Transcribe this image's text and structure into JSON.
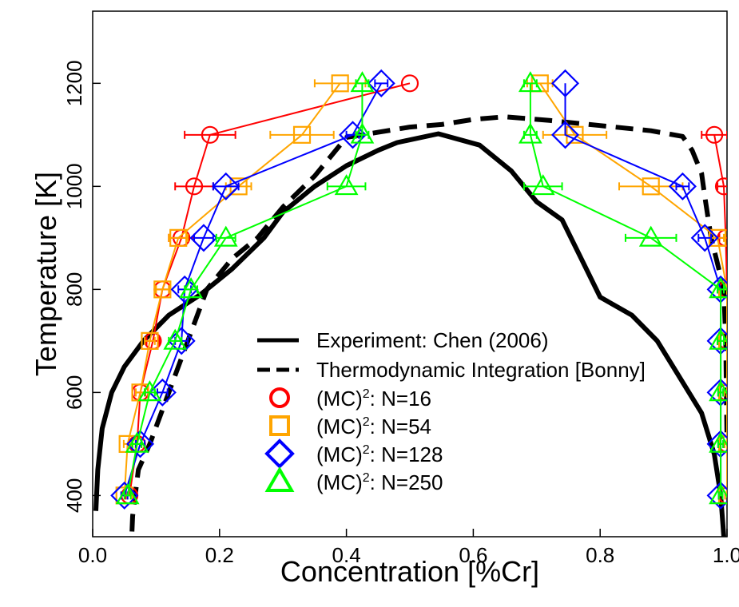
{
  "chart_data": {
    "type": "scatter",
    "xlabel": "Concentration [%Cr]",
    "ylabel": "Temperature [K]",
    "xlim": [
      0.0,
      1.0
    ],
    "ylim": [
      320,
      1340
    ],
    "x_ticks": [
      "0.0",
      "0.2",
      "0.4",
      "0.6",
      "0.8",
      "1.0"
    ],
    "y_ticks": [
      "400",
      "600",
      "800",
      "1000",
      "1200"
    ],
    "grid": false,
    "legend_position": "center",
    "lines": [
      {
        "name": "Experiment: Chen (2006)",
        "color": "#000000",
        "dash": "solid",
        "points": [
          [
            0.005,
            370
          ],
          [
            0.008,
            450
          ],
          [
            0.015,
            530
          ],
          [
            0.03,
            600
          ],
          [
            0.05,
            650
          ],
          [
            0.08,
            700
          ],
          [
            0.12,
            750
          ],
          [
            0.17,
            790
          ],
          [
            0.22,
            840
          ],
          [
            0.27,
            900
          ],
          [
            0.3,
            950
          ],
          [
            0.35,
            1000
          ],
          [
            0.4,
            1040
          ],
          [
            0.45,
            1070
          ],
          [
            0.48,
            1085
          ],
          [
            0.545,
            1102
          ],
          [
            0.61,
            1080
          ],
          [
            0.66,
            1030
          ],
          [
            0.7,
            970
          ],
          [
            0.74,
            935
          ],
          [
            0.77,
            860
          ],
          [
            0.8,
            785
          ],
          [
            0.85,
            750
          ],
          [
            0.89,
            700
          ],
          [
            0.92,
            640
          ],
          [
            0.96,
            560
          ],
          [
            0.98,
            480
          ],
          [
            0.99,
            400
          ],
          [
            0.995,
            320
          ]
        ]
      },
      {
        "name": "Thermodynamic Integration [Bonny]",
        "color": "#000000",
        "dash": "dashed",
        "points": [
          [
            0.062,
            330
          ],
          [
            0.063,
            360
          ],
          [
            0.072,
            450
          ],
          [
            0.09,
            500
          ],
          [
            0.12,
            600
          ],
          [
            0.15,
            700
          ],
          [
            0.18,
            800
          ],
          [
            0.22,
            860
          ],
          [
            0.26,
            900
          ],
          [
            0.3,
            960
          ],
          [
            0.35,
            1020
          ],
          [
            0.4,
            1095
          ],
          [
            0.45,
            1105
          ],
          [
            0.5,
            1115
          ],
          [
            0.55,
            1120
          ],
          [
            0.6,
            1130
          ],
          [
            0.65,
            1135
          ],
          [
            0.72,
            1128
          ],
          [
            0.8,
            1118
          ],
          [
            0.88,
            1108
          ],
          [
            0.93,
            1097
          ],
          [
            0.945,
            1070
          ],
          [
            0.96,
            1025
          ],
          [
            0.965,
            980
          ],
          [
            0.975,
            900
          ],
          [
            0.985,
            850
          ],
          [
            0.995,
            800
          ],
          [
            0.998,
            700
          ],
          [
            0.999,
            600
          ],
          [
            1.0,
            500
          ]
        ]
      }
    ],
    "series": [
      {
        "name": "(MC)²: N=16",
        "legend_main": "(MC)",
        "legend_sup": "2",
        "legend_rest": ": N=16",
        "marker": "circle",
        "color": "#ff0000",
        "left_branch": [
          [
            0.058,
            400,
            0.006
          ],
          [
            0.07,
            500,
            0.007
          ],
          [
            0.075,
            600,
            0.008
          ],
          [
            0.095,
            700,
            0.01
          ],
          [
            0.11,
            800,
            0.012
          ],
          [
            0.14,
            900,
            0.02
          ],
          [
            0.16,
            1000,
            0.03
          ],
          [
            0.185,
            1100,
            0.04
          ],
          [
            0.5,
            1200,
            0
          ]
        ],
        "right_branch": [
          [
            0.98,
            1100,
            0.02
          ],
          [
            0.995,
            1000,
            0.01
          ],
          [
            0.998,
            900,
            0.01
          ],
          [
            1.0,
            800,
            0.005
          ],
          [
            1.0,
            700,
            0.005
          ],
          [
            1.0,
            600,
            0.004
          ],
          [
            1.0,
            500,
            0.004
          ],
          [
            1.0,
            400,
            0.003
          ]
        ]
      },
      {
        "name": "(MC)²: N=54",
        "legend_main": "(MC)",
        "legend_sup": "2",
        "legend_rest": ": N=54",
        "marker": "square",
        "color": "#ffa500",
        "left_branch": [
          [
            0.05,
            400,
            0.005
          ],
          [
            0.055,
            500,
            0.006
          ],
          [
            0.075,
            600,
            0.007
          ],
          [
            0.09,
            700,
            0.008
          ],
          [
            0.11,
            800,
            0.01
          ],
          [
            0.135,
            900,
            0.015
          ],
          [
            0.23,
            1000,
            0.02
          ],
          [
            0.33,
            1100,
            0.05
          ],
          [
            0.39,
            1200,
            0.04
          ]
        ],
        "right_branch": [
          [
            0.705,
            1200,
            0.02
          ],
          [
            0.76,
            1100,
            0.05
          ],
          [
            0.88,
            1000,
            0.05
          ],
          [
            0.985,
            900,
            0.01
          ],
          [
            1.0,
            800,
            0.005
          ],
          [
            1.0,
            700,
            0.005
          ],
          [
            1.0,
            600,
            0.004
          ],
          [
            1.0,
            500,
            0.004
          ],
          [
            1.0,
            400,
            0.003
          ]
        ]
      },
      {
        "name": "(MC)²: N=128",
        "legend_main": "(MC)",
        "legend_sup": "2",
        "legend_rest": ": N=128",
        "marker": "diamond",
        "color": "#0000ff",
        "left_branch": [
          [
            0.05,
            400,
            0.005
          ],
          [
            0.075,
            500,
            0.007
          ],
          [
            0.11,
            600,
            0.008
          ],
          [
            0.14,
            700,
            0.01
          ],
          [
            0.145,
            800,
            0.01
          ],
          [
            0.175,
            900,
            0.015
          ],
          [
            0.21,
            1000,
            0.02
          ],
          [
            0.41,
            1100,
            0.01
          ],
          [
            0.455,
            1200,
            0.01
          ]
        ],
        "right_branch": [
          [
            0.745,
            1200,
            0
          ],
          [
            0.745,
            1100,
            0
          ],
          [
            0.93,
            1000,
            0.01
          ],
          [
            0.965,
            900,
            0.01
          ],
          [
            0.99,
            800,
            0.005
          ],
          [
            0.99,
            700,
            0.005
          ],
          [
            0.99,
            600,
            0.004
          ],
          [
            0.99,
            500,
            0.004
          ],
          [
            0.99,
            400,
            0.003
          ]
        ]
      },
      {
        "name": "(MC)²: N=250",
        "legend_main": "(MC)",
        "legend_sup": "2",
        "legend_rest": ": N=250",
        "marker": "triangle",
        "color": "#00ff00",
        "left_branch": [
          [
            0.055,
            400,
            0.005
          ],
          [
            0.07,
            500,
            0.007
          ],
          [
            0.09,
            600,
            0.008
          ],
          [
            0.13,
            700,
            0.01
          ],
          [
            0.155,
            800,
            0.01
          ],
          [
            0.21,
            900,
            0.015
          ],
          [
            0.4,
            1000,
            0.03
          ],
          [
            0.425,
            1100,
            0.01
          ],
          [
            0.425,
            1200,
            0.01
          ]
        ],
        "right_branch": [
          [
            0.69,
            1200,
            0.01
          ],
          [
            0.69,
            1100,
            0.01
          ],
          [
            0.71,
            1000,
            0.03
          ],
          [
            0.88,
            900,
            0.04
          ],
          [
            0.99,
            800,
            0.005
          ],
          [
            0.99,
            700,
            0.005
          ],
          [
            0.99,
            600,
            0.004
          ],
          [
            0.99,
            500,
            0.004
          ],
          [
            0.99,
            400,
            0.003
          ]
        ]
      }
    ]
  }
}
